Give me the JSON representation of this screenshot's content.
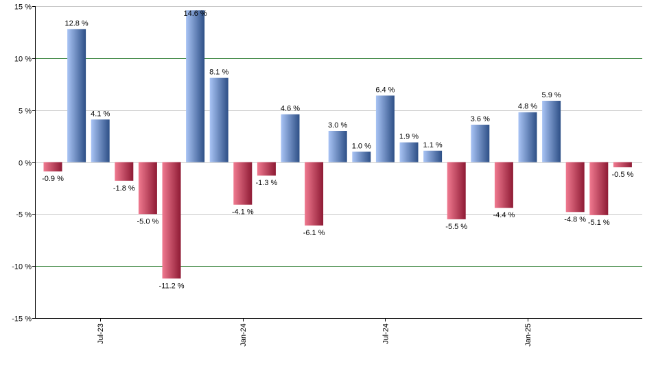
{
  "chart_data": {
    "type": "bar",
    "values": [
      -0.9,
      12.8,
      4.1,
      -1.8,
      -5.0,
      -11.2,
      14.6,
      8.1,
      -4.1,
      -1.3,
      4.6,
      -6.1,
      3.0,
      1.0,
      6.4,
      1.9,
      1.1,
      -5.5,
      3.6,
      -4.4,
      4.8,
      5.9,
      -4.8,
      -5.1,
      -0.5
    ],
    "data_labels": [
      "-0.9 %",
      "12.8 %",
      "4.1 %",
      "-1.8 %",
      "-5.0 %",
      "-11.2 %",
      "14.6 %",
      "8.1 %",
      "-4.1 %",
      "-1.3 %",
      "4.6 %",
      "-6.1 %",
      "3.0 %",
      "1.0 %",
      "6.4 %",
      "1.9 %",
      "1.1 %",
      "-5.5 %",
      "3.6 %",
      "-4.4 %",
      "4.8 %",
      "5.9 %",
      "-4.8 %",
      "-5.1 %",
      "-0.5 %"
    ],
    "ylim": [
      -15,
      15
    ],
    "y_ticks": [
      {
        "value": 15,
        "label": "15 %"
      },
      {
        "value": 10,
        "label": "10 %"
      },
      {
        "value": 5,
        "label": "5 %"
      },
      {
        "value": 0,
        "label": "0 %"
      },
      {
        "value": -5,
        "label": "-5 %"
      },
      {
        "value": -10,
        "label": "-10 %"
      },
      {
        "value": -15,
        "label": "-15 %"
      }
    ],
    "x_ticks": [
      {
        "bar_index": 2,
        "label": "Jul-23"
      },
      {
        "bar_index": 8,
        "label": "Jan-24"
      },
      {
        "bar_index": 14,
        "label": "Jul-24"
      },
      {
        "bar_index": 20,
        "label": "Jan-25"
      }
    ],
    "major_gridlines": [
      10,
      -10
    ],
    "colors": {
      "positive_light": "#a9c4f5",
      "positive_dark": "#2d4f86",
      "negative_light": "#f07a90",
      "negative_dark": "#8e1a34",
      "major_grid": "#2e7d32",
      "minor_grid": "#c8c8c8",
      "axis": "#000000"
    }
  }
}
